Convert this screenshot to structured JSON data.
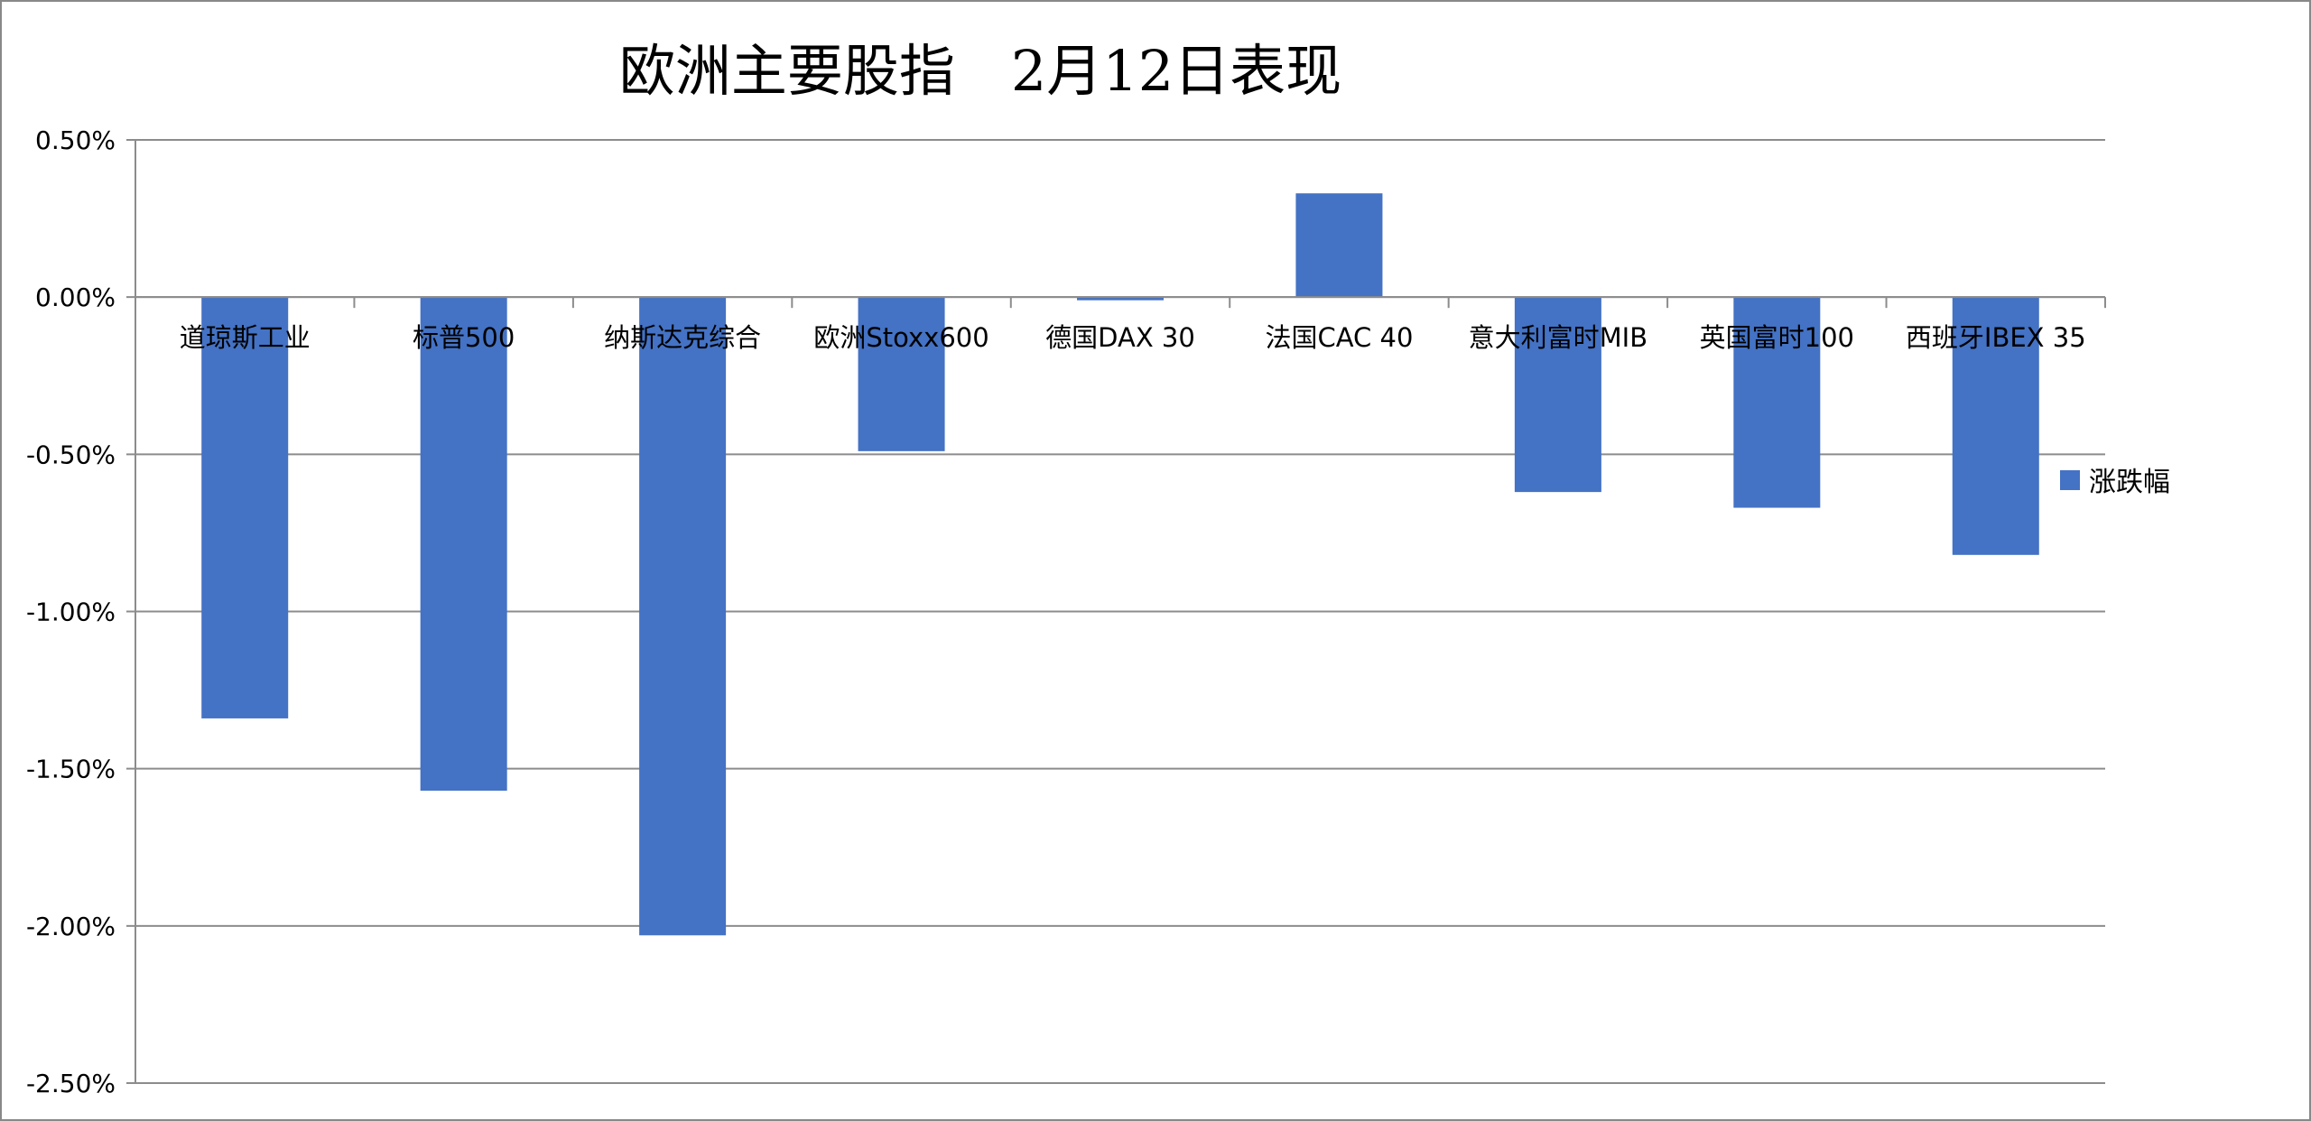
{
  "chart_data": {
    "type": "bar",
    "title": "欧洲主要股指　2月12日表现",
    "categories": [
      "道琼斯工业",
      "标普500",
      "纳斯达克综合",
      "欧洲Stoxx600",
      "德国DAX 30",
      "法国CAC 40",
      "意大利富时MIB",
      "英国富时100",
      "西班牙IBEX 35"
    ],
    "series": [
      {
        "name": "涨跌幅",
        "values": [
          -1.34,
          -1.57,
          -2.03,
          -0.49,
          -0.01,
          0.33,
          -0.62,
          -0.67,
          -0.82
        ],
        "color": "#4472C4"
      }
    ],
    "ylim": [
      -2.5,
      0.5
    ],
    "yticks": [
      0.5,
      0.0,
      -0.5,
      -1.0,
      -1.5,
      -2.0,
      -2.5
    ],
    "ytick_labels": [
      "0.50%",
      "0.00%",
      "-0.50%",
      "-1.00%",
      "-1.50%",
      "-2.00%",
      "-2.50%"
    ],
    "yunit": "%",
    "grid": true,
    "legend": "right",
    "xlabel": "",
    "ylabel": ""
  }
}
